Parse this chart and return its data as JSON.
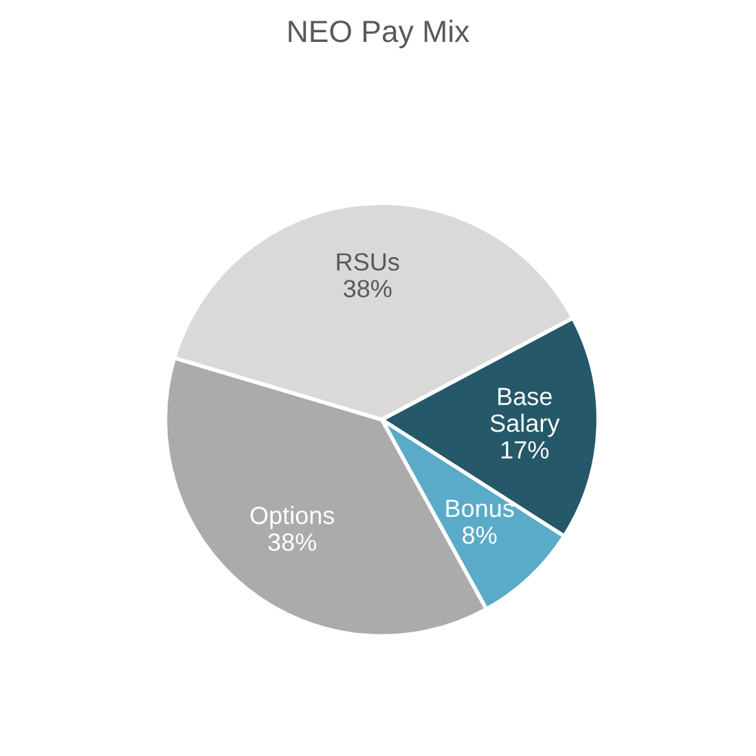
{
  "chart_data": {
    "type": "pie",
    "title": "NEO Pay Mix",
    "categories": [
      "Base\nSalary",
      "Bonus",
      "Options",
      "RSUs"
    ],
    "values": [
      17,
      8,
      38,
      38
    ],
    "value_labels": [
      "17%",
      "8%",
      "38%",
      "38%"
    ],
    "colors": [
      "#255868",
      "#5aabc8",
      "#ababab",
      "#d9d9d9"
    ],
    "legend": false
  }
}
